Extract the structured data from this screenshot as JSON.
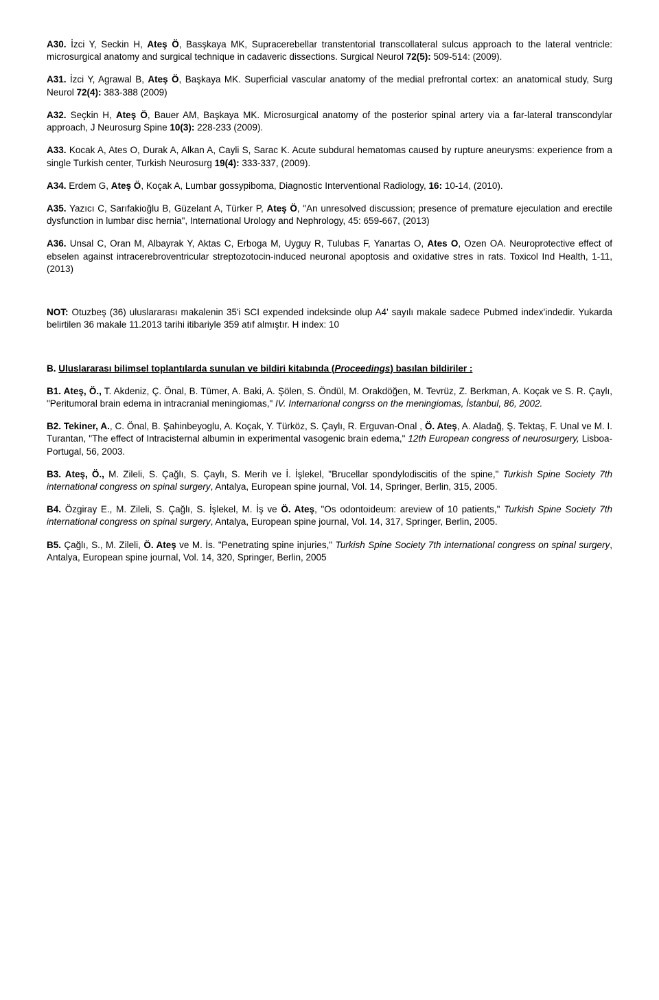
{
  "entries": [
    {
      "html": "<span class='bold'>A30.</span> İzci Y, Seckin H, <span class='bold'>Ateş Ö</span>, Basşkaya MK, Supracerebellar transtentorial transcollateral sulcus approach to the lateral ventricle: microsurgical anatomy and surgical technique in cadaveric dissections. Surgical Neurol <span class='bold'>72(5):</span> 509-514: (2009)."
    },
    {
      "html": "<span class='bold'>A31.</span> İzci Y, Agrawal B, <span class='bold'>Ateş Ö</span>, Başkaya MK. Superficial vascular anatomy of the medial prefrontal cortex: an anatomical study, Surg Neurol <span class='bold'>72(4):</span> 383-388 (2009)"
    },
    {
      "html": "<span class='bold'>A32.</span> Seçkin H, <span class='bold'>Ateş Ö</span>, Bauer AM, Başkaya MK. Microsurgical anatomy of the posterior spinal artery via a far-lateral transcondylar approach, J Neurosurg Spine <span class='bold'>10(3):</span> 228-233 (2009)."
    },
    {
      "html": "<span class='bold'>A33.</span> Kocak A, Ates O, Durak A, Alkan A, Cayli S, Sarac K. Acute subdural hematomas caused by rupture aneurysms: experience from a single Turkish center, Turkish Neurosurg <span class='bold'>19(4):</span> 333-337, (2009)."
    },
    {
      "html": "<span class='bold'>A34.</span> Erdem G, <span class='bold'>Ateş Ö</span>, Koçak A, Lumbar gossypiboma, Diagnostic Interventional Radiology, <span class='bold'>16:</span> 10-14, (2010)."
    },
    {
      "html": "<span class='bold'>A35.</span> Yazıcı C, Sarıfakioğlu B, Güzelant A, Türker P, <span class='bold'>Ateş Ö</span>, \"An unresolved discussion; presence of premature ejeculation and erectile dysfunction in lumbar disc hernia\", International Urology and Nephrology, 45: 659-667, (2013)"
    },
    {
      "html": "<span class='bold'>A36.</span> Unsal C, Oran M, Albayrak Y, Aktas C, Erboga M, Uyguy R, Tulubas F, Yanartas O, <span class='bold'>Ates O</span>, Ozen OA. Neuroprotective effect of ebselen against intracerebroventricular streptozotocin-induced neuronal apoptosis and oxidative stres in rats. Toxicol Ind Health, 1-11, (2013)"
    },
    {
      "gap": true
    },
    {
      "html": "<span class='bold'>NOT:</span> Otuzbeş (36) uluslararası makalenin 35'i SCI expended indeksinde olup A4' sayılı makale sadece Pubmed index'indedir. Yukarda belirtilen 36 makale 11.2013 tarihi itibariyle 359 atıf almıştır. H index: 10"
    },
    {
      "gap": true
    },
    {
      "html": "<span class='bold'>B. <span class='underline'>Uluslararası bilimsel toplantılarda sunulan ve bildiri kitabında (<span class='italic'>Proceedings</span>) basılan bildiriler :</span></span>",
      "align": "left"
    },
    {
      "html": "<span class='bold'>B1. Ateş, Ö.,</span> T. Akdeniz, Ç. Önal, B. Tümer, A. Baki, A. Şölen, S. Öndül, M. Orakdöğen, M. Tevrüz, Z. Berkman, A. Koçak ve S. R. Çaylı, \"Peritumoral brain edema in intracranial meningiomas,\" <span class='italic'>IV. Internarional congrss on the meningiomas, İstanbul, 86, 2002.</span>"
    },
    {
      "html": "<span class='bold'>B2. Tekiner, A.</span>, C. Önal, B. Şahinbeyoglu, A. Koçak, Y. Türköz, S. Çaylı, R. Erguvan-Onal , <span class='bold'>Ö. Ateş</span>, A. Aladağ, Ş. Tektaş, F. Unal ve M. I. Turantan, \"The effect of Intracisternal albumin in experimental vasogenic brain edema,\" <span class='italic'>12th European congress of neurosurgery,</span> Lisboa-Portugal, 56, 2003."
    },
    {
      "html": "<span class='bold'>B3. Ateş, Ö.,</span> M. Zileli, S. Çağlı, S. Çaylı, S. Merih ve İ. İşlekel, \"Brucellar spondylodiscitis of the spine,\" <span class='italic'>Turkish Spine Society 7th international congress on spinal surgery</span>, Antalya, European spine journal, Vol. 14, Springer, Berlin, 315, 2005."
    },
    {
      "html": "<span class='bold'>B4.</span> Özgiray E., M. Zileli, S. Çağlı, S. İşlekel, M. İş ve <span class='bold'>Ö. Ateş</span>, \"Os odontoideum: areview of 10 patients,\" <span class='italic'>Turkish Spine Society 7th international congress on spinal surgery</span>, Antalya, European spine journal, Vol. 14, 317, Springer, Berlin, 2005."
    },
    {
      "html": "<span class='bold'>B5.</span> Çağlı, S., M. Zileli, <span class='bold'>Ö. Ateş</span> ve M. İs. \"Penetrating spine injuries,\" <span class='italic'>Turkish Spine Society 7th international congress on spinal surgery</span>, Antalya, European spine journal, Vol. 14, 320, Springer, Berlin, 2005"
    }
  ]
}
